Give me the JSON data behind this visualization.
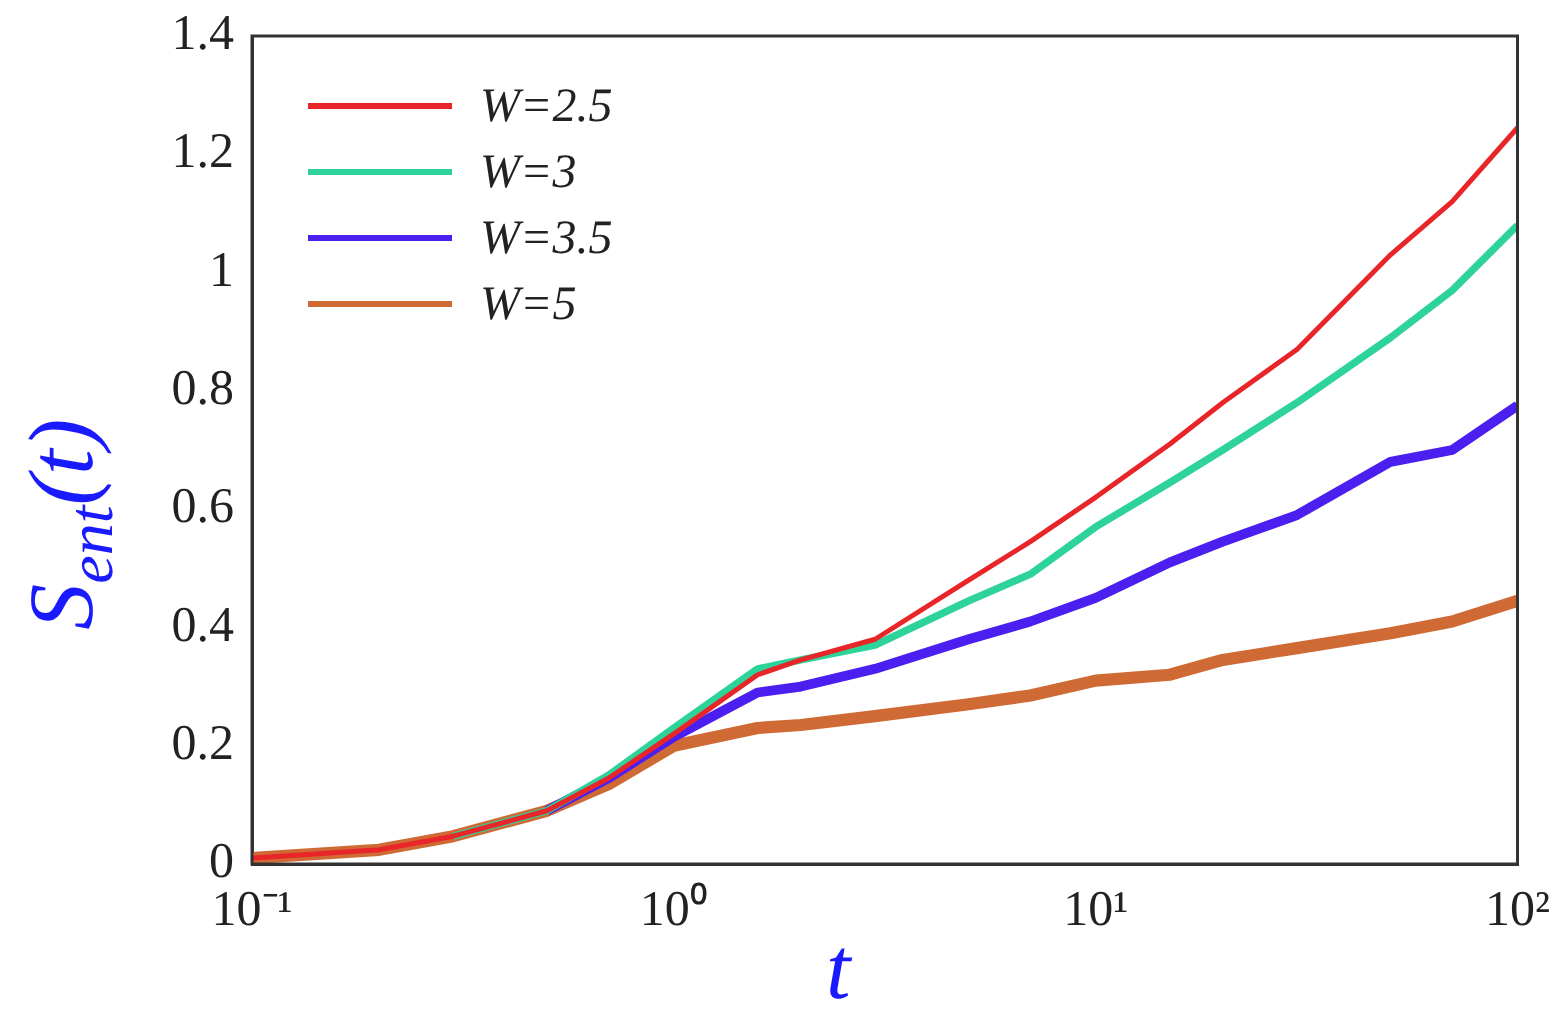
{
  "chart_data": {
    "type": "line",
    "xlabel": "t",
    "ylabel": "S$_{ent}$(t)",
    "x": [
      0.1,
      0.2,
      0.3,
      0.5,
      0.7,
      1,
      1.58,
      2,
      3,
      5,
      7,
      10,
      15,
      20,
      30,
      50,
      70,
      100
    ],
    "series": [
      {
        "name": "W=2.5",
        "color": "#e8262a",
        "values": [
          0.01,
          0.024,
          0.047,
          0.09,
          0.145,
          0.22,
          0.32,
          0.345,
          0.38,
          0.48,
          0.545,
          0.62,
          0.71,
          0.78,
          0.87,
          1.03,
          1.12,
          1.245
        ]
      },
      {
        "name": "W=3",
        "color": "#2ed39a",
        "values": [
          null,
          null,
          0.047,
          0.09,
          0.15,
          0.23,
          0.33,
          0.345,
          0.37,
          0.445,
          0.49,
          0.57,
          0.645,
          0.7,
          0.78,
          0.89,
          0.97,
          1.08
        ]
      },
      {
        "name": "W=3.5",
        "color": "#4a1ff0",
        "values": [
          null,
          null,
          null,
          0.09,
          0.145,
          0.215,
          0.29,
          0.3,
          0.33,
          0.38,
          0.41,
          0.45,
          0.51,
          0.545,
          0.59,
          0.68,
          0.7,
          0.775
        ]
      },
      {
        "name": "W=5",
        "color": "#d06a35",
        "values": [
          0.01,
          0.024,
          0.047,
          0.09,
          0.135,
          0.2,
          0.23,
          0.235,
          0.25,
          0.27,
          0.285,
          0.31,
          0.32,
          0.345,
          0.365,
          0.39,
          0.41,
          0.445
        ]
      }
    ],
    "log": "x",
    "xlim": [
      0.1,
      100
    ],
    "xticks": [
      {
        "value": 0.1,
        "label": "10⁻¹"
      },
      {
        "value": 1,
        "label": "10⁰"
      },
      {
        "value": 10,
        "label": "10¹"
      },
      {
        "value": 100,
        "label": "10²"
      }
    ],
    "ylim": [
      0,
      1.4
    ],
    "yticks": [
      0,
      0.2,
      0.4,
      0.6,
      0.8,
      1,
      1.2,
      1.4
    ],
    "grid": false,
    "legend": "top left",
    "marker": "none",
    "line_style": "solid"
  }
}
